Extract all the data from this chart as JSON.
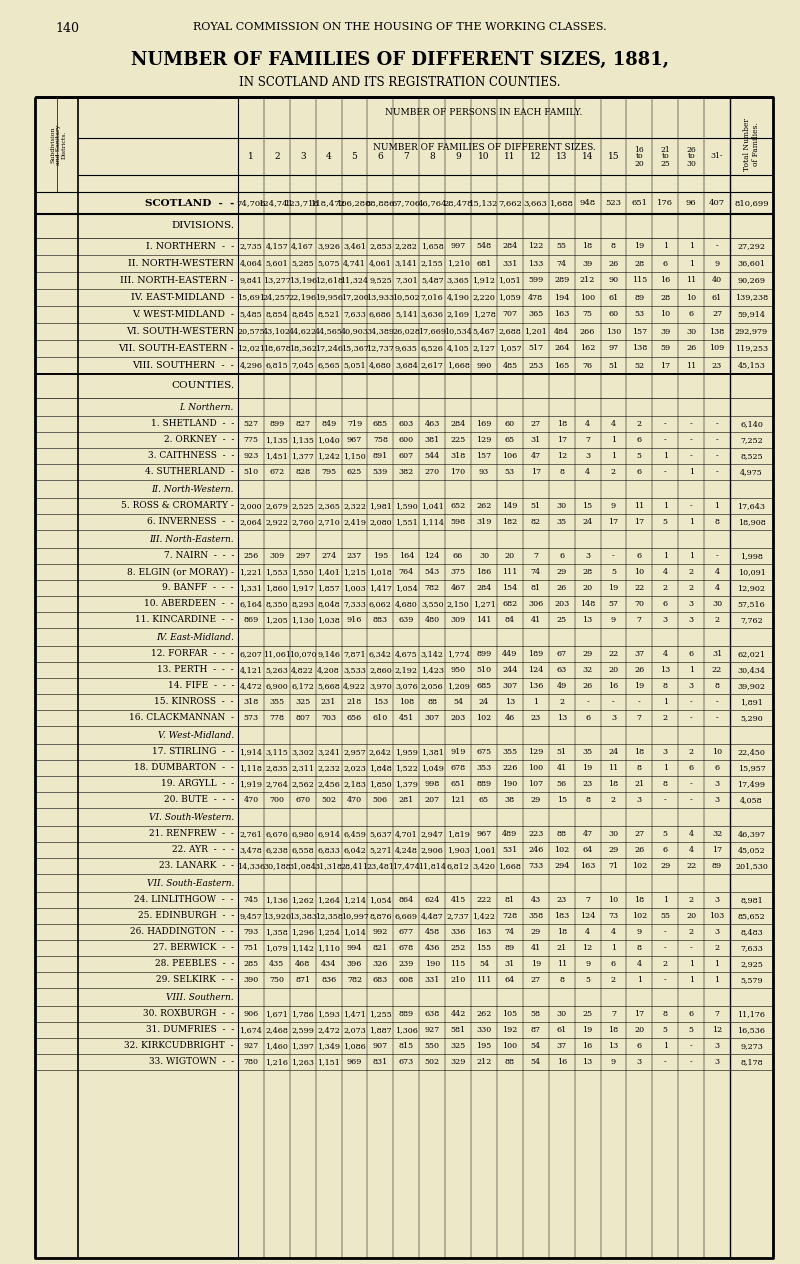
{
  "page_num": "140",
  "header_text": "ROYAL COMMISSION ON THE HOUSING OF THE WORKING CLASSES.",
  "title": "NUMBER OF FAMILIES OF DIFFERENT SIZES, 1881,",
  "subtitle": "IN SCOTLAND AND ITS REGISTRATION COUNTIES.",
  "bg_color": "#ede8c8",
  "rows": [
    {
      "label": "SCOTLAND  -  -",
      "type": "scotland",
      "values": [
        "74,706",
        "124,741",
        "123,718",
        "118,472",
        "106,280",
        "88,886",
        "67,706",
        "46,764",
        "28,478",
        "15,132",
        "7,662",
        "3,663",
        "1,688",
        "948",
        "523",
        "651",
        "176",
        "96",
        "407",
        "810,699"
      ]
    },
    {
      "label": "DIVISIONS.",
      "type": "section_header",
      "values": []
    },
    {
      "label": "I. NORTHERN  -  -",
      "type": "division",
      "values": [
        "2,735",
        "4,157",
        "4,167",
        "3,926",
        "3,461",
        "2,853",
        "2,282",
        "1,658",
        "997",
        "548",
        "284",
        "122",
        "55",
        "18",
        "8",
        "19",
        "1",
        "1",
        "-",
        "27,292"
      ]
    },
    {
      "label": "II. NORTH-WESTERN",
      "type": "division",
      "values": [
        "4,064",
        "5,601",
        "5,285",
        "5,075",
        "4,741",
        "4,061",
        "3,141",
        "2,155",
        "1,210",
        "681",
        "331",
        "133",
        "74",
        "39",
        "26",
        "28",
        "6",
        "1",
        "9",
        "36,601"
      ]
    },
    {
      "label": "III. NORTH-EASTERN -",
      "type": "division",
      "values": [
        "9,841",
        "13,277",
        "13,196",
        "12,618",
        "11,324",
        "9,525",
        "7,301",
        "5,487",
        "3,365",
        "1,912",
        "1,051",
        "599",
        "289",
        "212",
        "90",
        "115",
        "16",
        "11",
        "40",
        "90,269"
      ]
    },
    {
      "label": "IV. EAST-MIDLAND  -",
      "type": "division",
      "values": [
        "15,691",
        "24,257",
        "22,196",
        "19,956",
        "17,200",
        "13,933",
        "10,502",
        "7,016",
        "4,190",
        "2,220",
        "1,059",
        "478",
        "194",
        "100",
        "61",
        "89",
        "28",
        "10",
        "61",
        "139,238"
      ]
    },
    {
      "label": "V. WEST-MIDLAND  -",
      "type": "division",
      "values": [
        "5,485",
        "8,854",
        "8,845",
        "8,521",
        "7,633",
        "6,686",
        "5,141",
        "3,636",
        "2,169",
        "1,278",
        "707",
        "365",
        "163",
        "75",
        "60",
        "53",
        "10",
        "6",
        "27",
        "59,914"
      ]
    },
    {
      "label": "VI. SOUTH-WESTERN",
      "type": "division",
      "values": [
        "20,575",
        "43,102",
        "44,622",
        "44,565",
        "40,903",
        "34,389",
        "26,028",
        "17,669",
        "10,534",
        "5,467",
        "2,688",
        "1,201",
        "484",
        "266",
        "130",
        "157",
        "39",
        "30",
        "138",
        "292,979"
      ]
    },
    {
      "label": "VII. SOUTH-EASTERN -",
      "type": "division",
      "values": [
        "12,021",
        "18,678",
        "18,362",
        "17,246",
        "15,367",
        "12,737",
        "9,635",
        "6,526",
        "4,105",
        "2,127",
        "1,057",
        "517",
        "264",
        "162",
        "97",
        "138",
        "59",
        "26",
        "109",
        "119,253"
      ]
    },
    {
      "label": "VIII. SOUTHERN  -  -",
      "type": "division_last",
      "values": [
        "4,296",
        "6,815",
        "7,045",
        "6,565",
        "5,051",
        "4,680",
        "3,684",
        "2,617",
        "1,668",
        "990",
        "485",
        "253",
        "165",
        "76",
        "51",
        "52",
        "17",
        "11",
        "23",
        "45,153"
      ]
    },
    {
      "label": "COUNTIES.",
      "type": "section_header",
      "values": []
    },
    {
      "label": "I. Northern.",
      "type": "county_section",
      "values": []
    },
    {
      "label": "1. SHETLAND  -  -",
      "type": "county",
      "values": [
        "527",
        "899",
        "827",
        "849",
        "719",
        "685",
        "603",
        "463",
        "284",
        "169",
        "60",
        "27",
        "18",
        "4",
        "4",
        "2",
        "-",
        "-",
        "-",
        "6,140"
      ]
    },
    {
      "label": "2. ORKNEY  -  -",
      "type": "county",
      "values": [
        "775",
        "1,135",
        "1,135",
        "1,040",
        "967",
        "758",
        "600",
        "381",
        "225",
        "129",
        "65",
        "31",
        "17",
        "7",
        "1",
        "6",
        "-",
        "-",
        "-",
        "7,252"
      ]
    },
    {
      "label": "3. CAITHNESS  -  -",
      "type": "county",
      "values": [
        "923",
        "1,451",
        "1,377",
        "1,242",
        "1,150",
        "891",
        "607",
        "544",
        "318",
        "157",
        "106",
        "47",
        "12",
        "3",
        "1",
        "5",
        "1",
        "-",
        "-",
        "8,525"
      ]
    },
    {
      "label": "4. SUTHERLAND  -",
      "type": "county",
      "values": [
        "510",
        "672",
        "828",
        "795",
        "625",
        "539",
        "382",
        "270",
        "170",
        "93",
        "53",
        "17",
        "8",
        "4",
        "2",
        "6",
        "-",
        "1",
        "-",
        "4,975"
      ]
    },
    {
      "label": "II. North-Western.",
      "type": "county_section",
      "values": []
    },
    {
      "label": "5. ROSS & CROMARTY -",
      "type": "county",
      "values": [
        "2,000",
        "2,679",
        "2,525",
        "2,365",
        "2,322",
        "1,981",
        "1,590",
        "1,041",
        "652",
        "262",
        "149",
        "51",
        "30",
        "15",
        "9",
        "11",
        "1",
        "-",
        "1",
        "17,643"
      ]
    },
    {
      "label": "6. INVERNESS  -  -",
      "type": "county",
      "values": [
        "2,064",
        "2,922",
        "2,760",
        "2,710",
        "2,419",
        "2,080",
        "1,551",
        "1,114",
        "598",
        "319",
        "182",
        "82",
        "35",
        "24",
        "17",
        "17",
        "5",
        "1",
        "8",
        "18,908"
      ]
    },
    {
      "label": "III. North-Eastern.",
      "type": "county_section",
      "values": []
    },
    {
      "label": "7. NAIRN  -  -  -",
      "type": "county",
      "values": [
        "256",
        "309",
        "297",
        "274",
        "237",
        "195",
        "164",
        "124",
        "66",
        "30",
        "20",
        "7",
        "6",
        "3",
        "-",
        "6",
        "1",
        "1",
        "-",
        "1,998"
      ]
    },
    {
      "label": "8. ELGIN (or MORAY) -",
      "type": "county",
      "values": [
        "1,221",
        "1,553",
        "1,550",
        "1,401",
        "1,215",
        "1,018",
        "764",
        "543",
        "375",
        "186",
        "111",
        "74",
        "29",
        "28",
        "5",
        "10",
        "4",
        "2",
        "4",
        "10,091"
      ]
    },
    {
      "label": "9. BANFF  -  -  -",
      "type": "county",
      "values": [
        "1,331",
        "1,860",
        "1,917",
        "1,857",
        "1,003",
        "1,417",
        "1,054",
        "782",
        "467",
        "284",
        "154",
        "81",
        "26",
        "20",
        "19",
        "22",
        "2",
        "2",
        "4",
        "12,902"
      ]
    },
    {
      "label": "10. ABERDEEN  -  -",
      "type": "county",
      "values": [
        "6,164",
        "8,350",
        "8,293",
        "8,048",
        "7,333",
        "6,062",
        "4,680",
        "3,550",
        "2,150",
        "1,271",
        "682",
        "306",
        "203",
        "148",
        "57",
        "70",
        "6",
        "3",
        "30",
        "57,516"
      ]
    },
    {
      "label": "11. KINCARDINE  -  -",
      "type": "county",
      "values": [
        "869",
        "1,205",
        "1,130",
        "1,038",
        "916",
        "883",
        "639",
        "480",
        "309",
        "141",
        "84",
        "41",
        "25",
        "13",
        "9",
        "7",
        "3",
        "3",
        "2",
        "7,762"
      ]
    },
    {
      "label": "IV. East-Midland.",
      "type": "county_section",
      "values": []
    },
    {
      "label": "12. FORFAR  -  -  -",
      "type": "county",
      "values": [
        "6,207",
        "11,061",
        "10,070",
        "9,146",
        "7,871",
        "6,342",
        "4,675",
        "3,142",
        "1,774",
        "899",
        "449",
        "189",
        "67",
        "29",
        "22",
        "37",
        "4",
        "6",
        "31",
        "62,021"
      ]
    },
    {
      "label": "13. PERTH  -  -  -",
      "type": "county",
      "values": [
        "4,121",
        "5,263",
        "4,822",
        "4,208",
        "3,533",
        "2,860",
        "2,192",
        "1,423",
        "950",
        "510",
        "244",
        "124",
        "63",
        "32",
        "20",
        "26",
        "13",
        "1",
        "22",
        "30,434"
      ]
    },
    {
      "label": "14. FIFE  -  -  -",
      "type": "county",
      "values": [
        "4,472",
        "6,900",
        "6,172",
        "5,668",
        "4,922",
        "3,970",
        "3,076",
        "2,056",
        "1,209",
        "685",
        "307",
        "136",
        "49",
        "26",
        "16",
        "19",
        "8",
        "3",
        "8",
        "39,902"
      ]
    },
    {
      "label": "15. KINROSS  -  -",
      "type": "county",
      "values": [
        "318",
        "355",
        "325",
        "231",
        "218",
        "153",
        "108",
        "88",
        "54",
        "24",
        "13",
        "1",
        "2",
        "-",
        "-",
        "-",
        "1",
        "-",
        "-",
        "1,891"
      ]
    },
    {
      "label": "16. CLACKMANNAN  -",
      "type": "county",
      "values": [
        "573",
        "778",
        "807",
        "703",
        "656",
        "610",
        "451",
        "307",
        "203",
        "102",
        "46",
        "23",
        "13",
        "6",
        "3",
        "7",
        "2",
        "-",
        "-",
        "5,290"
      ]
    },
    {
      "label": "V. West-Midland.",
      "type": "county_section",
      "values": []
    },
    {
      "label": "17. STIRLING  -  -",
      "type": "county",
      "values": [
        "1,914",
        "3,115",
        "3,302",
        "3,241",
        "2,957",
        "2,642",
        "1,959",
        "1,381",
        "919",
        "675",
        "355",
        "129",
        "51",
        "35",
        "24",
        "18",
        "3",
        "2",
        "10",
        "22,450"
      ]
    },
    {
      "label": "18. DUMBARTON  -  -",
      "type": "county",
      "values": [
        "1,118",
        "2,835",
        "2,311",
        "2,232",
        "2,023",
        "1,848",
        "1,522",
        "1,049",
        "678",
        "353",
        "226",
        "100",
        "41",
        "19",
        "11",
        "8",
        "1",
        "6",
        "6",
        "15,957"
      ]
    },
    {
      "label": "19. ARGYLL  -  -",
      "type": "county",
      "values": [
        "1,919",
        "2,764",
        "2,562",
        "2,456",
        "2,183",
        "1,850",
        "1,379",
        "998",
        "651",
        "889",
        "190",
        "107",
        "56",
        "23",
        "18",
        "21",
        "8",
        "-",
        "3",
        "17,499"
      ]
    },
    {
      "label": "20. BUTE  -  -  -",
      "type": "county",
      "values": [
        "470",
        "700",
        "670",
        "502",
        "470",
        "506",
        "281",
        "207",
        "121",
        "65",
        "38",
        "29",
        "15",
        "8",
        "2",
        "3",
        "-",
        "-",
        "3",
        "4,058"
      ]
    },
    {
      "label": "VI. South-Western.",
      "type": "county_section",
      "values": []
    },
    {
      "label": "21. RENFREW  -  -",
      "type": "county",
      "values": [
        "2,761",
        "6,676",
        "6,980",
        "6,914",
        "6,459",
        "5,637",
        "4,701",
        "2,947",
        "1,819",
        "967",
        "489",
        "223",
        "88",
        "47",
        "30",
        "27",
        "5",
        "4",
        "32",
        "46,397"
      ]
    },
    {
      "label": "22. AYR  -  -  -",
      "type": "county",
      "values": [
        "3,478",
        "6,238",
        "6,558",
        "6,833",
        "6,042",
        "5,271",
        "4,248",
        "2,906",
        "1,903",
        "1,061",
        "531",
        "246",
        "102",
        "64",
        "29",
        "26",
        "6",
        "4",
        "17",
        "45,052"
      ]
    },
    {
      "label": "23. LANARK  -  -",
      "type": "county",
      "values": [
        "14,336",
        "30,188",
        "31,084",
        "31,318",
        "28,411",
        "23,481",
        "17,474",
        "11,814",
        "6,812",
        "3,420",
        "1,668",
        "733",
        "294",
        "163",
        "71",
        "102",
        "29",
        "22",
        "89",
        "201,530"
      ]
    },
    {
      "label": "VII. South-Eastern.",
      "type": "county_section",
      "values": []
    },
    {
      "label": "24. LINLITHGOW  -  -",
      "type": "county",
      "values": [
        "745",
        "1,136",
        "1,262",
        "1,264",
        "1,214",
        "1,054",
        "864",
        "624",
        "415",
        "222",
        "81",
        "43",
        "23",
        "7",
        "10",
        "18",
        "1",
        "2",
        "3",
        "8,981"
      ]
    },
    {
      "label": "25. EDINBURGH  -  -",
      "type": "county",
      "values": [
        "9,457",
        "13,920",
        "13,383",
        "12,358",
        "10,997",
        "8,876",
        "6,669",
        "4,487",
        "2,737",
        "1,422",
        "728",
        "358",
        "183",
        "124",
        "73",
        "102",
        "55",
        "20",
        "103",
        "85,652"
      ]
    },
    {
      "label": "26. HADDINGTON  -  -",
      "type": "county",
      "values": [
        "793",
        "1,358",
        "1,296",
        "1,254",
        "1,014",
        "992",
        "677",
        "458",
        "336",
        "163",
        "74",
        "29",
        "18",
        "4",
        "4",
        "9",
        "-",
        "2",
        "3",
        "8,483"
      ]
    },
    {
      "label": "27. BERWICK  -  -",
      "type": "county",
      "values": [
        "751",
        "1,079",
        "1,142",
        "1,110",
        "994",
        "821",
        "678",
        "436",
        "252",
        "155",
        "89",
        "41",
        "21",
        "12",
        "1",
        "8",
        "-",
        "-",
        "2",
        "7,633"
      ]
    },
    {
      "label": "28. PEEBLES  -  -",
      "type": "county",
      "values": [
        "285",
        "435",
        "468",
        "434",
        "396",
        "326",
        "239",
        "190",
        "115",
        "54",
        "31",
        "19",
        "11",
        "9",
        "6",
        "4",
        "2",
        "1",
        "1",
        "2,925"
      ]
    },
    {
      "label": "29. SELKIRK  -  -",
      "type": "county",
      "values": [
        "390",
        "750",
        "871",
        "836",
        "782",
        "683",
        "608",
        "331",
        "210",
        "111",
        "64",
        "27",
        "8",
        "5",
        "2",
        "1",
        "-",
        "1",
        "1",
        "5,579"
      ]
    },
    {
      "label": "VIII. Southern.",
      "type": "county_section",
      "values": []
    },
    {
      "label": "30. ROXBURGH  -  -",
      "type": "county",
      "values": [
        "906",
        "1,671",
        "1,786",
        "1,593",
        "1,471",
        "1,255",
        "889",
        "638",
        "442",
        "262",
        "105",
        "58",
        "30",
        "25",
        "7",
        "17",
        "8",
        "6",
        "7",
        "11,176"
      ]
    },
    {
      "label": "31. DUMFRIES  -  -",
      "type": "county",
      "values": [
        "1,674",
        "2,468",
        "2,599",
        "2,472",
        "2,073",
        "1,887",
        "1,306",
        "927",
        "581",
        "330",
        "192",
        "87",
        "61",
        "19",
        "18",
        "20",
        "5",
        "5",
        "12",
        "16,536"
      ]
    },
    {
      "label": "32. KIRKCUDBRIGHT  -",
      "type": "county",
      "values": [
        "927",
        "1,460",
        "1,397",
        "1,349",
        "1,086",
        "907",
        "815",
        "550",
        "325",
        "195",
        "100",
        "54",
        "37",
        "16",
        "13",
        "6",
        "1",
        "-",
        "3",
        "9,273"
      ]
    },
    {
      "label": "33. WIGTOWN  -  -",
      "type": "county",
      "values": [
        "780",
        "1,216",
        "1,263",
        "1,151",
        "969",
        "831",
        "673",
        "502",
        "329",
        "212",
        "88",
        "54",
        "16",
        "13",
        "9",
        "3",
        "-",
        "-",
        "3",
        "8,178"
      ]
    }
  ]
}
